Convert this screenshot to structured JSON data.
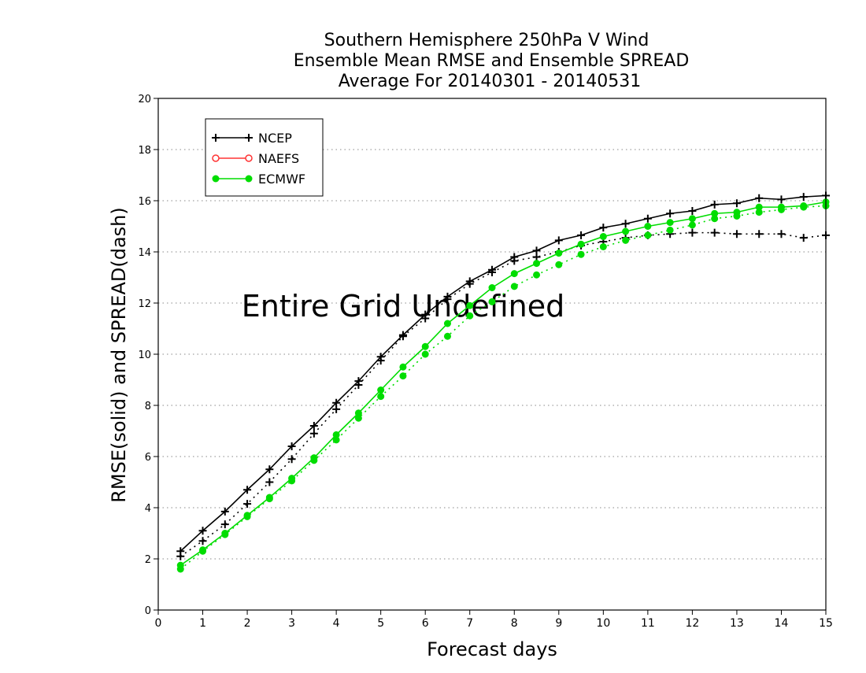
{
  "chart_data": {
    "type": "line",
    "title_lines": [
      "Southern Hemisphere 250hPa V Wind",
      "Ensemble Mean RMSE and Ensemble SPREAD",
      "Average For 20140301 - 20140531"
    ],
    "xlabel": "Forecast days",
    "ylabel": "RMSE(solid) and SPREAD(dash)",
    "annotation": "Entire Grid Undefined",
    "xlim": [
      0,
      15
    ],
    "ylim": [
      0,
      20
    ],
    "xticks": [
      0,
      1,
      2,
      3,
      4,
      5,
      6,
      7,
      8,
      9,
      10,
      11,
      12,
      13,
      14,
      15
    ],
    "yticks": [
      0,
      2,
      4,
      6,
      8,
      10,
      12,
      14,
      16,
      18,
      20
    ],
    "grid": "dotted horizontal",
    "legend_position": "top-left",
    "x": [
      0.5,
      1,
      1.5,
      2,
      2.5,
      3,
      3.5,
      4,
      4.5,
      5,
      5.5,
      6,
      6.5,
      7,
      7.5,
      8,
      8.5,
      9,
      9.5,
      10,
      10.5,
      11,
      11.5,
      12,
      12.5,
      13,
      13.5,
      14,
      14.5,
      15
    ],
    "series": [
      {
        "name": "NCEP",
        "metric": "RMSE",
        "line": "solid",
        "marker": "plus",
        "color": "#000000",
        "values": [
          2.3,
          3.1,
          3.85,
          4.7,
          5.5,
          6.4,
          7.2,
          8.1,
          8.95,
          9.9,
          10.75,
          11.55,
          12.25,
          12.85,
          13.3,
          13.8,
          14.05,
          14.45,
          14.65,
          14.95,
          15.1,
          15.3,
          15.5,
          15.6,
          15.85,
          15.9,
          16.1,
          16.05,
          16.15,
          16.2
        ]
      },
      {
        "name": "NCEP",
        "metric": "SPREAD",
        "line": "dash",
        "marker": "plus",
        "color": "#000000",
        "values": [
          2.1,
          2.7,
          3.35,
          4.15,
          5.0,
          5.9,
          6.9,
          7.85,
          8.8,
          9.75,
          10.7,
          11.4,
          12.15,
          12.75,
          13.2,
          13.65,
          13.8,
          14.0,
          14.25,
          14.4,
          14.55,
          14.65,
          14.7,
          14.75,
          14.75,
          14.7,
          14.7,
          14.7,
          14.55,
          14.65
        ]
      },
      {
        "name": "ECMWF",
        "metric": "RMSE",
        "line": "solid",
        "marker": "filled-circle",
        "color": "#00dd00",
        "values": [
          1.75,
          2.35,
          3.0,
          3.7,
          4.4,
          5.15,
          5.95,
          6.85,
          7.7,
          8.6,
          9.5,
          10.3,
          11.2,
          11.9,
          12.6,
          13.15,
          13.55,
          13.95,
          14.3,
          14.6,
          14.8,
          15.0,
          15.15,
          15.3,
          15.5,
          15.55,
          15.75,
          15.75,
          15.8,
          15.95
        ]
      },
      {
        "name": "ECMWF",
        "metric": "SPREAD",
        "line": "dash",
        "marker": "filled-circle",
        "color": "#00dd00",
        "values": [
          1.6,
          2.3,
          2.95,
          3.65,
          4.35,
          5.05,
          5.85,
          6.65,
          7.5,
          8.35,
          9.15,
          10.0,
          10.7,
          11.5,
          12.05,
          12.65,
          13.1,
          13.5,
          13.9,
          14.2,
          14.45,
          14.65,
          14.85,
          15.05,
          15.3,
          15.4,
          15.55,
          15.65,
          15.75,
          15.8
        ]
      }
    ],
    "legend": [
      {
        "name": "NCEP",
        "marker": "plus",
        "color": "#000000"
      },
      {
        "name": "NAEFS",
        "marker": "open-circle",
        "color": "#ff3333"
      },
      {
        "name": "ECMWF",
        "marker": "filled-circle",
        "color": "#00dd00"
      }
    ]
  }
}
